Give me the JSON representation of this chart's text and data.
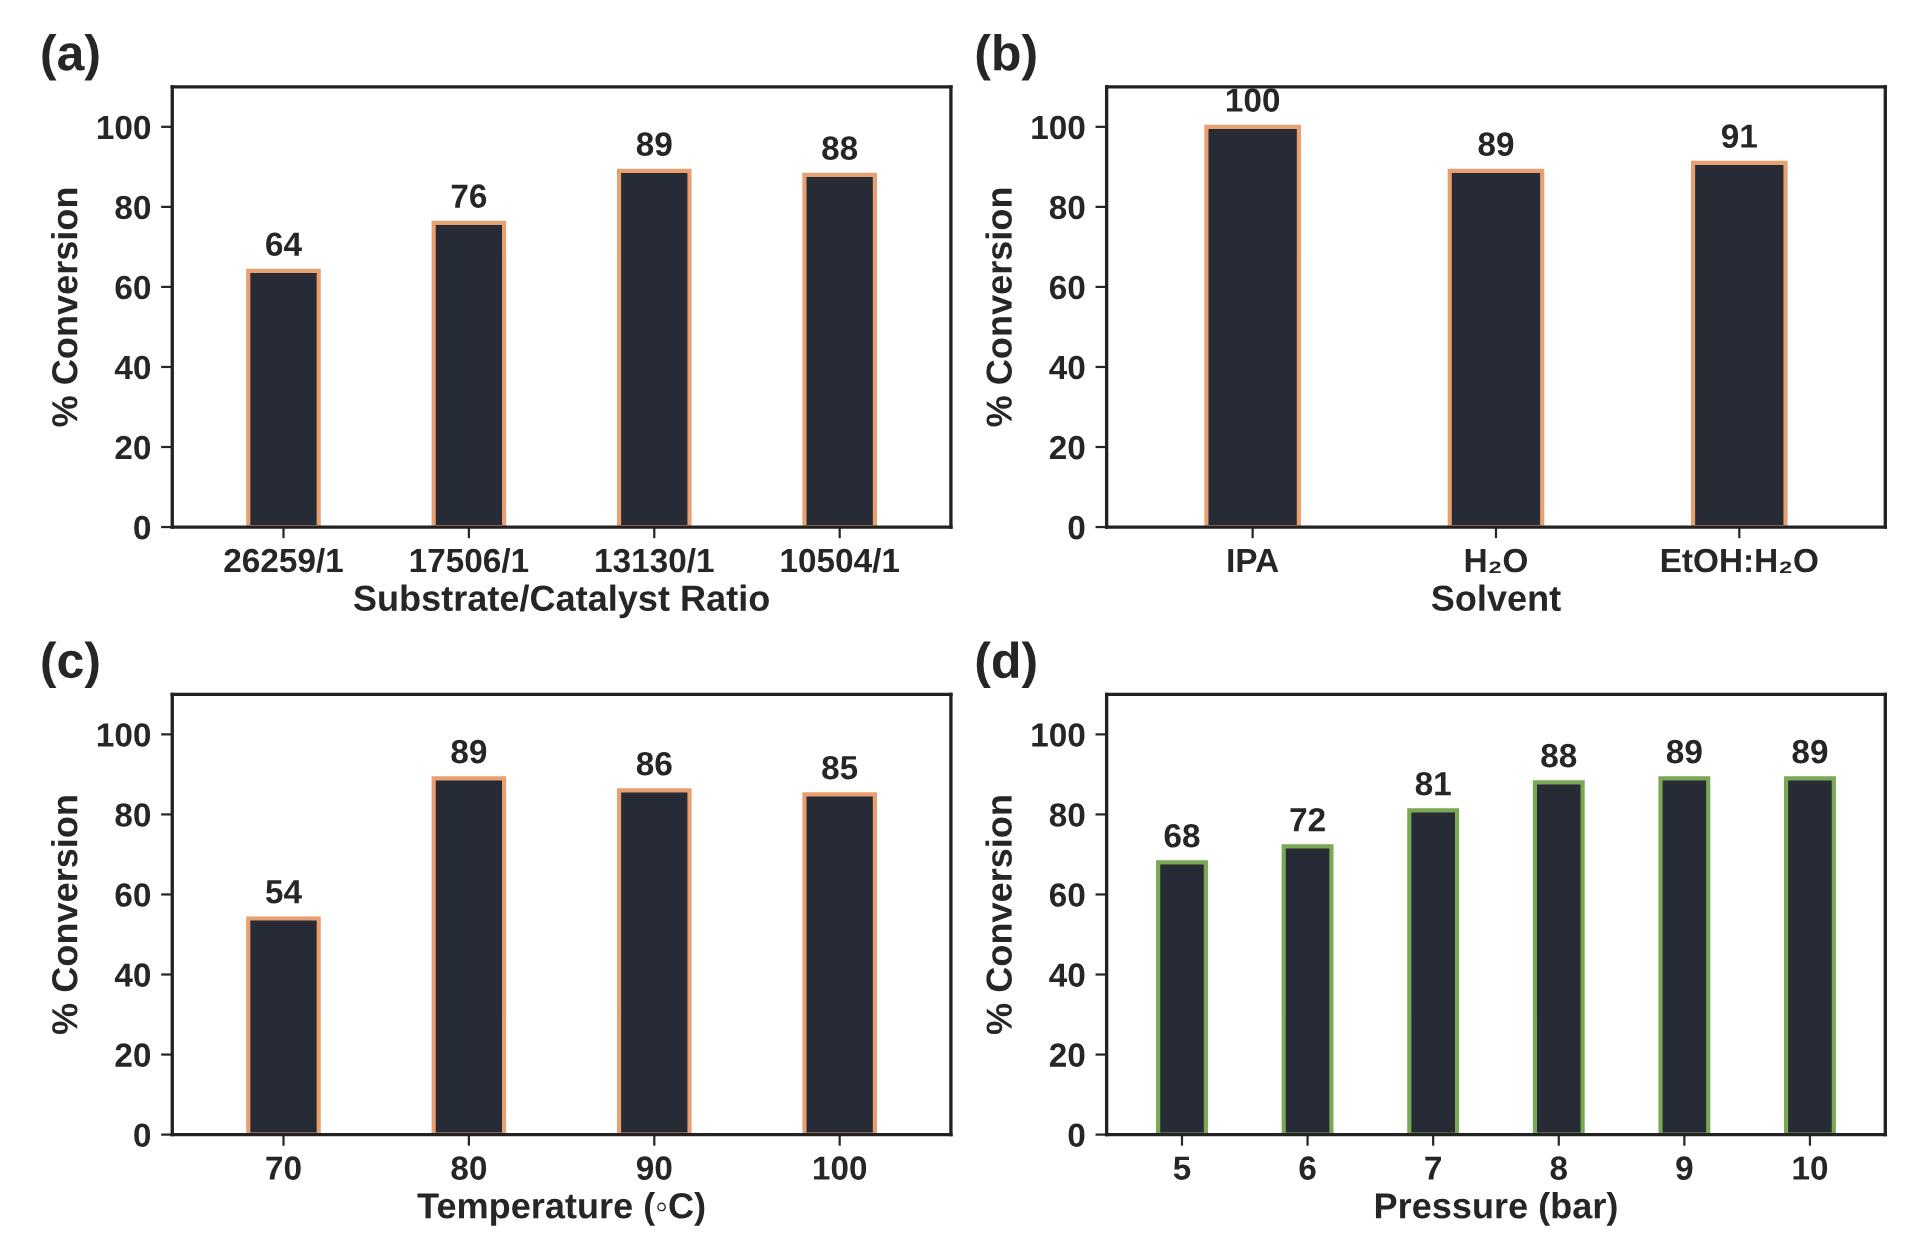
{
  "chart_data": [
    {
      "type": "bar",
      "title": "(a)",
      "xlabel": "Substrate/Catalyst Ratio",
      "ylabel": "% Conversion",
      "categories": [
        "26259/1",
        "17506/1",
        "13130/1",
        "10504/1"
      ],
      "values": [
        64,
        76,
        89,
        88
      ],
      "color": "#262b35",
      "ylim": [
        0,
        110
      ],
      "yticks": [
        0,
        20,
        40,
        60,
        80,
        100
      ],
      "data_labels": true,
      "grid": false,
      "legend": false
    },
    {
      "type": "bar",
      "title": "(b)",
      "xlabel": "Solvent",
      "ylabel": "% Conversion",
      "categories": [
        "IPA",
        "H₂O",
        "EtOH:H₂O"
      ],
      "values": [
        100,
        89,
        91
      ],
      "color": "#262b35",
      "ylim": [
        0,
        110
      ],
      "yticks": [
        0,
        20,
        40,
        60,
        80,
        100
      ],
      "data_labels": true,
      "grid": false,
      "legend": false
    },
    {
      "type": "bar",
      "title": "(c)",
      "xlabel": "Temperature (◦C)",
      "ylabel": "% Conversion",
      "categories": [
        "70",
        "80",
        "90",
        "100"
      ],
      "values": [
        54,
        89,
        86,
        85
      ],
      "color": "#262b35",
      "ylim": [
        0,
        110
      ],
      "yticks": [
        0,
        20,
        40,
        60,
        80,
        100
      ],
      "data_labels": true,
      "grid": false,
      "legend": false
    },
    {
      "type": "bar",
      "title": "(d)",
      "xlabel": "Pressure (bar)",
      "ylabel": "% Conversion",
      "categories": [
        "5",
        "6",
        "7",
        "8",
        "9",
        "10"
      ],
      "values": [
        68,
        72,
        81,
        88,
        89,
        89
      ],
      "color": "#262b35",
      "ylim": [
        0,
        110
      ],
      "yticks": [
        0,
        20,
        40,
        60,
        80,
        100
      ],
      "data_labels": true,
      "grid": false,
      "legend": false
    }
  ]
}
